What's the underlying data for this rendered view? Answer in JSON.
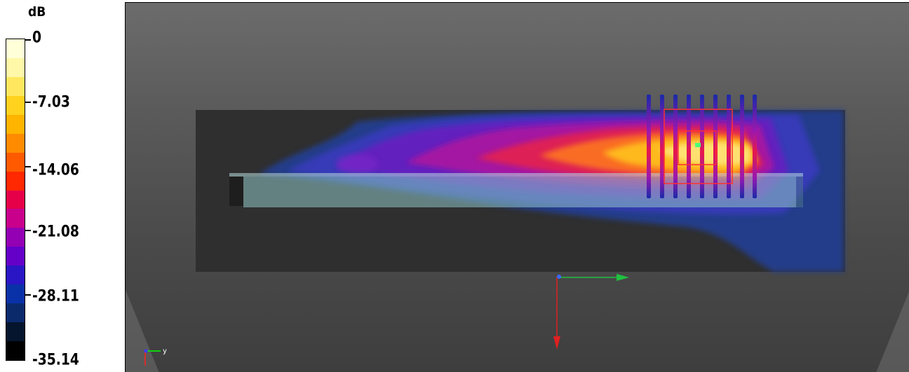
{
  "legend": {
    "unit": "dB",
    "ticks": [
      "0",
      "-7.03",
      "-14.06",
      "-21.08",
      "-28.11",
      "-35.14"
    ],
    "colors": [
      "#ffffd8",
      "#fff8a8",
      "#ffe860",
      "#ffd21e",
      "#ffb400",
      "#ff8c00",
      "#ff5a00",
      "#ff2800",
      "#e6004a",
      "#c8008c",
      "#9400b4",
      "#6400c8",
      "#2a16c4",
      "#0a32a8",
      "#0a2a6c",
      "#05152e",
      "#000000"
    ]
  },
  "view": {
    "axes_triad": {
      "x_color": "#3c3cff",
      "y_color": "#00ff00",
      "z_color": "#ff2020",
      "y_label": "y"
    }
  }
}
